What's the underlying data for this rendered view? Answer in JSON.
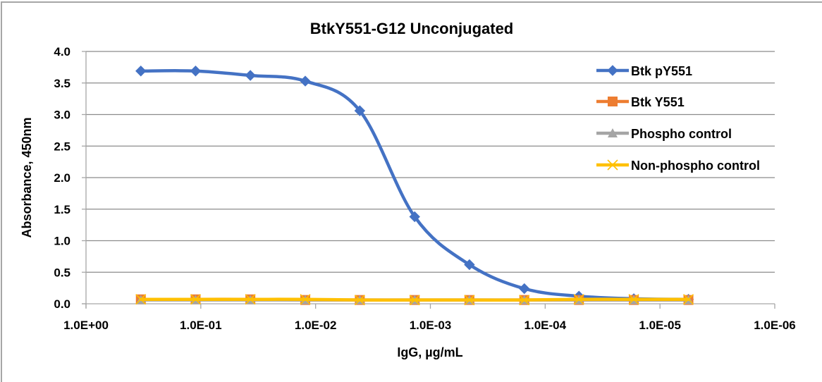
{
  "chart_data": {
    "type": "line",
    "title": "BtkY551-G12 Unconjugated",
    "xlabel": "IgG, µg/mL",
    "ylabel": "Absorbance, 450nm",
    "xscale": "log",
    "x_reversed": true,
    "xlim": [
      1.0,
      1e-06
    ],
    "ylim": [
      0,
      4.0
    ],
    "grid": "horizontal",
    "legend_position": "right",
    "x_tick_labels": [
      "1.0E+00",
      "1.0E-01",
      "1.0E-02",
      "1.0E-03",
      "1.0E-04",
      "1.0E-05",
      "1.0E-06"
    ],
    "y_tick_labels": [
      "0.0",
      "0.5",
      "1.0",
      "1.5",
      "2.0",
      "2.5",
      "3.0",
      "3.5",
      "4.0"
    ],
    "x": [
      0.333,
      0.111,
      0.037,
      0.0123,
      0.00412,
      0.00137,
      0.000457,
      0.000152,
      5.08e-05,
      1.69e-05,
      5.65e-06
    ],
    "series": [
      {
        "name": "Btk pY551",
        "color": "#4472c4",
        "marker": "diamond",
        "smooth": true,
        "values": [
          3.69,
          3.69,
          3.62,
          3.53,
          3.06,
          1.38,
          0.62,
          0.24,
          0.12,
          0.08,
          0.07
        ]
      },
      {
        "name": "Btk Y551",
        "color": "#ed7d31",
        "marker": "square",
        "smooth": true,
        "values": [
          0.07,
          0.07,
          0.07,
          0.06,
          0.06,
          0.06,
          0.06,
          0.06,
          0.06,
          0.06,
          0.06
        ]
      },
      {
        "name": "Phospho control",
        "color": "#a5a5a5",
        "marker": "triangle",
        "smooth": true,
        "values": [
          0.06,
          0.06,
          0.06,
          0.06,
          0.06,
          0.06,
          0.06,
          0.06,
          0.06,
          0.06,
          0.06
        ]
      },
      {
        "name": "Non-phospho control",
        "color": "#ffc000",
        "marker": "x",
        "smooth": true,
        "values": [
          0.07,
          0.07,
          0.07,
          0.07,
          0.06,
          0.06,
          0.06,
          0.06,
          0.07,
          0.07,
          0.07
        ]
      }
    ]
  },
  "colors": {
    "gridline": "#8c8c8c",
    "axis": "#a6a6a6",
    "frame": "#a6a6a6"
  }
}
